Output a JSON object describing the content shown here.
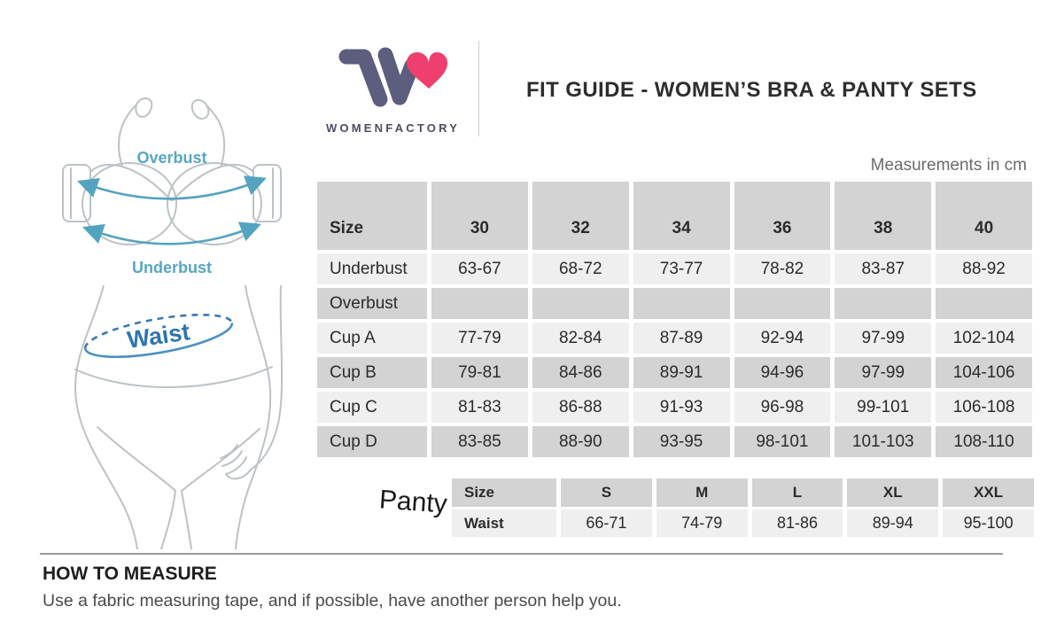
{
  "brand": {
    "logo_text": "WOMENFACTORY",
    "logo_w_color": "#5d5d7e",
    "logo_heart_color": "#ee3f6e"
  },
  "header": {
    "title": "FIT GUIDE - WOMEN’S BRA & PANTY SETS",
    "units_note": "Measurements in cm"
  },
  "diagram": {
    "overbust_label": "Overbust",
    "underbust_label": "Underbust",
    "waist_label": "Waist",
    "arrow_color": "#54a3c0",
    "waist_text_color": "#2f74ae",
    "outline_color": "#bcc2c6"
  },
  "bra_table": {
    "row_shade_dark": "#d3d3d3",
    "row_shade_light": "#efefef",
    "header": [
      "Size",
      "30",
      "32",
      "34",
      "36",
      "38",
      "40"
    ],
    "rows": [
      {
        "label": "Underbust",
        "values": [
          "63-67",
          "68-72",
          "73-77",
          "78-82",
          "83-87",
          "88-92"
        ]
      },
      {
        "label": "Overbust",
        "values": [
          "",
          "",
          "",
          "",
          "",
          ""
        ]
      },
      {
        "label": "Cup A",
        "values": [
          "77-79",
          "82-84",
          "87-89",
          "92-94",
          "97-99",
          "102-104"
        ]
      },
      {
        "label": "Cup B",
        "values": [
          "79-81",
          "84-86",
          "89-91",
          "94-96",
          "97-99",
          "104-106"
        ]
      },
      {
        "label": "Cup C",
        "values": [
          "81-83",
          "86-88",
          "91-93",
          "96-98",
          "99-101",
          "106-108"
        ]
      },
      {
        "label": "Cup D",
        "values": [
          "83-85",
          "88-90",
          "93-95",
          "98-101",
          "101-103",
          "108-110"
        ]
      }
    ]
  },
  "panty_table": {
    "caption": "Panty",
    "header": {
      "label": "Size",
      "values": [
        "S",
        "M",
        "L",
        "XL",
        "XXL"
      ]
    },
    "waist_row": {
      "label": "Waist",
      "values": [
        "66-71",
        "74-79",
        "81-86",
        "89-94",
        "95-100"
      ]
    }
  },
  "how_to_measure": {
    "heading": "HOW TO MEASURE",
    "body": "Use a fabric measuring tape, and if possible, have another person help you."
  }
}
